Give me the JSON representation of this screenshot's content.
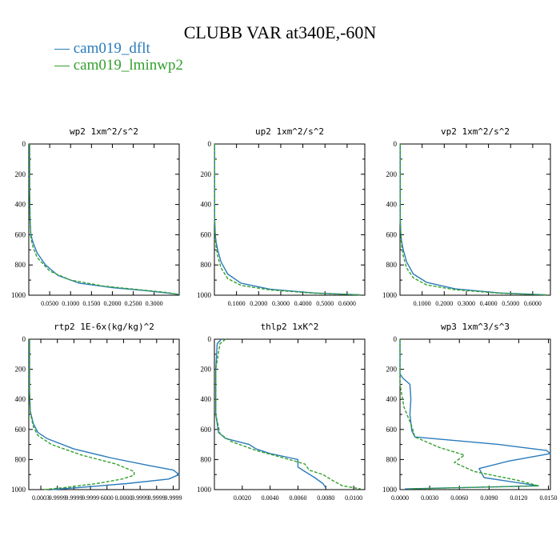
{
  "figure": {
    "title": "CLUBB VAR at340E,-60N",
    "legend": [
      {
        "label": "— cam019_dflt",
        "color": "#2a7bbb"
      },
      {
        "label": "— cam019_lminwp2",
        "color": "#33a02c"
      }
    ]
  },
  "chart_data": [
    {
      "type": "line",
      "title": "wp2  1xm^2/s^2",
      "ylim": [
        1000,
        0
      ],
      "yticks": [
        "0",
        "200",
        "400",
        "600",
        "800",
        "1000"
      ],
      "xlim": [
        0,
        0.36
      ],
      "xticks": [
        {
          "v": 0.05,
          "label": "0.0500"
        },
        {
          "v": 0.1,
          "label": "0.1000"
        },
        {
          "v": 0.15,
          "label": "0.1500"
        },
        {
          "v": 0.2,
          "label": "0.2000"
        },
        {
          "v": 0.25,
          "label": "0.2500"
        },
        {
          "v": 0.3,
          "label": "0.3000"
        }
      ],
      "series": [
        {
          "name": "cam019_dflt",
          "color": "#2a7bbb",
          "dashed": false,
          "points": [
            [
              0.002,
              0
            ],
            [
              0.002,
              300
            ],
            [
              0.003,
              500
            ],
            [
              0.005,
              600
            ],
            [
              0.01,
              650
            ],
            [
              0.02,
              720
            ],
            [
              0.04,
              800
            ],
            [
              0.07,
              870
            ],
            [
              0.12,
              920
            ],
            [
              0.2,
              950
            ],
            [
              0.28,
              970
            ],
            [
              0.33,
              985
            ],
            [
              0.36,
              995
            ]
          ]
        },
        {
          "name": "cam019_lminwp2",
          "color": "#33a02c",
          "dashed": true,
          "points": [
            [
              0.002,
              0
            ],
            [
              0.002,
              300
            ],
            [
              0.003,
              500
            ],
            [
              0.005,
              620
            ],
            [
              0.01,
              680
            ],
            [
              0.02,
              750
            ],
            [
              0.05,
              840
            ],
            [
              0.1,
              900
            ],
            [
              0.18,
              940
            ],
            [
              0.27,
              965
            ],
            [
              0.33,
              982
            ],
            [
              0.36,
              995
            ]
          ]
        }
      ]
    },
    {
      "type": "line",
      "title": "up2  1xm^2/s^2",
      "ylim": [
        1000,
        0
      ],
      "yticks": [
        "0",
        "200",
        "400",
        "600",
        "800",
        "1000"
      ],
      "xlim": [
        0,
        0.68
      ],
      "xticks": [
        {
          "v": 0.1,
          "label": "0.1000"
        },
        {
          "v": 0.2,
          "label": "0.2000"
        },
        {
          "v": 0.3,
          "label": "0.3000"
        },
        {
          "v": 0.4,
          "label": "0.4000"
        },
        {
          "v": 0.5,
          "label": "0.5000"
        },
        {
          "v": 0.6,
          "label": "0.6000"
        }
      ],
      "series": [
        {
          "name": "cam019_dflt",
          "color": "#2a7bbb",
          "dashed": false,
          "points": [
            [
              0.001,
              0
            ],
            [
              0.001,
              500
            ],
            [
              0.004,
              600
            ],
            [
              0.008,
              650
            ],
            [
              0.015,
              700
            ],
            [
              0.03,
              780
            ],
            [
              0.06,
              860
            ],
            [
              0.12,
              920
            ],
            [
              0.25,
              960
            ],
            [
              0.45,
              985
            ],
            [
              0.66,
              998
            ]
          ]
        },
        {
          "name": "cam019_lminwp2",
          "color": "#33a02c",
          "dashed": true,
          "points": [
            [
              0.001,
              0
            ],
            [
              0.001,
              500
            ],
            [
              0.004,
              620
            ],
            [
              0.008,
              680
            ],
            [
              0.015,
              740
            ],
            [
              0.03,
              820
            ],
            [
              0.06,
              890
            ],
            [
              0.12,
              935
            ],
            [
              0.25,
              965
            ],
            [
              0.45,
              987
            ],
            [
              0.66,
              998
            ]
          ]
        }
      ]
    },
    {
      "type": "line",
      "title": "vp2  1xm^2/s^2",
      "ylim": [
        1000,
        0
      ],
      "yticks": [
        "0",
        "200",
        "400",
        "600",
        "800",
        "1000"
      ],
      "xlim": [
        0,
        0.68
      ],
      "xticks": [
        {
          "v": 0.1,
          "label": "0.1000"
        },
        {
          "v": 0.2,
          "label": "0.2000"
        },
        {
          "v": 0.3,
          "label": "0.3000"
        },
        {
          "v": 0.4,
          "label": "0.4000"
        },
        {
          "v": 0.5,
          "label": "0.5000"
        },
        {
          "v": 0.6,
          "label": "0.6000"
        }
      ],
      "series": [
        {
          "name": "cam019_dflt",
          "color": "#2a7bbb",
          "dashed": false,
          "points": [
            [
              0.001,
              0
            ],
            [
              0.001,
              500
            ],
            [
              0.004,
              600
            ],
            [
              0.008,
              650
            ],
            [
              0.015,
              700
            ],
            [
              0.03,
              780
            ],
            [
              0.06,
              860
            ],
            [
              0.12,
              915
            ],
            [
              0.25,
              958
            ],
            [
              0.45,
              985
            ],
            [
              0.66,
              998
            ]
          ]
        },
        {
          "name": "cam019_lminwp2",
          "color": "#33a02c",
          "dashed": true,
          "points": [
            [
              0.001,
              0
            ],
            [
              0.001,
              500
            ],
            [
              0.004,
              620
            ],
            [
              0.008,
              680
            ],
            [
              0.015,
              740
            ],
            [
              0.03,
              820
            ],
            [
              0.06,
              885
            ],
            [
              0.12,
              932
            ],
            [
              0.25,
              964
            ],
            [
              0.45,
              987
            ],
            [
              0.66,
              998
            ]
          ]
        }
      ]
    },
    {
      "type": "line",
      "title": "rtp2  1E-6x(kg/kg)^2",
      "ylim": [
        1000,
        0
      ],
      "yticks": [
        "0",
        "200",
        "400",
        "600",
        "800",
        "1000"
      ],
      "xlim": [
        0,
        1
      ],
      "xticks": [
        {
          "v": 0.08,
          "label": "0.0003"
        },
        {
          "v": 0.19,
          "label": "9.9999"
        },
        {
          "v": 0.3,
          "label": "9.9999"
        },
        {
          "v": 0.41,
          "label": "9.9999"
        },
        {
          "v": 0.52,
          "label": "6000"
        },
        {
          "v": 0.63,
          "label": "0.0000"
        },
        {
          "v": 0.74,
          "label": "9.9999"
        },
        {
          "v": 0.85,
          "label": "9.9999"
        },
        {
          "v": 0.96,
          "label": "9.9999"
        }
      ],
      "series": [
        {
          "name": "cam019_dflt",
          "color": "#2a7bbb",
          "dashed": false,
          "points": [
            [
              0.005,
              0
            ],
            [
              0.005,
              350
            ],
            [
              0.01,
              480
            ],
            [
              0.03,
              560
            ],
            [
              0.06,
              620
            ],
            [
              0.12,
              660
            ],
            [
              0.3,
              730
            ],
            [
              0.55,
              790
            ],
            [
              0.8,
              840
            ],
            [
              0.96,
              870
            ],
            [
              1.0,
              900
            ],
            [
              0.93,
              930
            ],
            [
              0.65,
              960
            ],
            [
              0.35,
              985
            ],
            [
              0.15,
              1000
            ]
          ]
        },
        {
          "name": "cam019_lminwp2",
          "color": "#33a02c",
          "dashed": true,
          "points": [
            [
              0.005,
              0
            ],
            [
              0.005,
              350
            ],
            [
              0.01,
              490
            ],
            [
              0.03,
              580
            ],
            [
              0.06,
              640
            ],
            [
              0.15,
              700
            ],
            [
              0.35,
              770
            ],
            [
              0.58,
              830
            ],
            [
              0.7,
              880
            ],
            [
              0.7,
              905
            ],
            [
              0.62,
              930
            ],
            [
              0.45,
              960
            ],
            [
              0.25,
              985
            ],
            [
              0.1,
              1000
            ]
          ]
        }
      ]
    },
    {
      "type": "line",
      "title": "thlp2  1xK^2",
      "ylim": [
        1000,
        0
      ],
      "yticks": [
        "0",
        "200",
        "400",
        "600",
        "800",
        "1000"
      ],
      "xlim": [
        0,
        0.0108
      ],
      "xticks": [
        {
          "v": 0.002,
          "label": "0.0020"
        },
        {
          "v": 0.004,
          "label": "0.0040"
        },
        {
          "v": 0.006,
          "label": "0.0060"
        },
        {
          "v": 0.008,
          "label": "0.0080"
        },
        {
          "v": 0.01,
          "label": "0.0100"
        }
      ],
      "series": [
        {
          "name": "cam019_dflt",
          "color": "#2a7bbb",
          "dashed": false,
          "points": [
            [
              0.0005,
              0
            ],
            [
              0.0002,
              30
            ],
            [
              0.0001,
              200
            ],
            [
              0.0001,
              500
            ],
            [
              0.0003,
              620
            ],
            [
              0.0008,
              660
            ],
            [
              0.0025,
              700
            ],
            [
              0.003,
              730
            ],
            [
              0.004,
              760
            ],
            [
              0.0055,
              790
            ],
            [
              0.006,
              800
            ],
            [
              0.006,
              850
            ],
            [
              0.0065,
              880
            ],
            [
              0.0072,
              920
            ],
            [
              0.0078,
              960
            ],
            [
              0.008,
              990
            ]
          ]
        },
        {
          "name": "cam019_lminwp2",
          "color": "#33a02c",
          "dashed": true,
          "points": [
            [
              0.0008,
              0
            ],
            [
              0.0004,
              30
            ],
            [
              0.0001,
              200
            ],
            [
              0.0001,
              500
            ],
            [
              0.0004,
              630
            ],
            [
              0.0012,
              680
            ],
            [
              0.003,
              740
            ],
            [
              0.005,
              790
            ],
            [
              0.0065,
              830
            ],
            [
              0.0068,
              870
            ],
            [
              0.0078,
              900
            ],
            [
              0.0085,
              940
            ],
            [
              0.0092,
              975
            ],
            [
              0.0105,
              995
            ]
          ]
        }
      ]
    },
    {
      "type": "line",
      "title": "wp3  1xm^3/s^3",
      "ylim": [
        1000,
        0
      ],
      "yticks": [
        "0",
        "200",
        "400",
        "600",
        "800",
        "1000"
      ],
      "xlim": [
        0,
        0.0152
      ],
      "xticks": [
        {
          "v": 0.0,
          "label": "0.0000"
        },
        {
          "v": 0.003,
          "label": "0.0030"
        },
        {
          "v": 0.006,
          "label": "0.0060"
        },
        {
          "v": 0.009,
          "label": "0.0090"
        },
        {
          "v": 0.012,
          "label": "0.0120"
        },
        {
          "v": 0.015,
          "label": "0.0150"
        }
      ],
      "series": [
        {
          "name": "cam019_dflt",
          "color": "#2a7bbb",
          "dashed": false,
          "points": [
            [
              0.0,
              0
            ],
            [
              0.0,
              230
            ],
            [
              0.0003,
              260
            ],
            [
              0.001,
              300
            ],
            [
              0.0011,
              400
            ],
            [
              0.001,
              500
            ],
            [
              0.0012,
              610
            ],
            [
              0.0015,
              650
            ],
            [
              0.01,
              700
            ],
            [
              0.0148,
              740
            ],
            [
              0.0152,
              760
            ],
            [
              0.011,
              810
            ],
            [
              0.008,
              860
            ],
            [
              0.0085,
              920
            ],
            [
              0.014,
              975
            ],
            [
              0.0005,
              995
            ]
          ]
        },
        {
          "name": "cam019_lminwp2",
          "color": "#33a02c",
          "dashed": true,
          "points": [
            [
              0.0,
              0
            ],
            [
              0.0,
              300
            ],
            [
              0.0004,
              450
            ],
            [
              0.0012,
              580
            ],
            [
              0.0015,
              650
            ],
            [
              0.004,
              720
            ],
            [
              0.0065,
              770
            ],
            [
              0.0055,
              820
            ],
            [
              0.0075,
              880
            ],
            [
              0.012,
              940
            ],
            [
              0.014,
              975
            ],
            [
              0.0008,
              995
            ]
          ]
        }
      ]
    }
  ]
}
